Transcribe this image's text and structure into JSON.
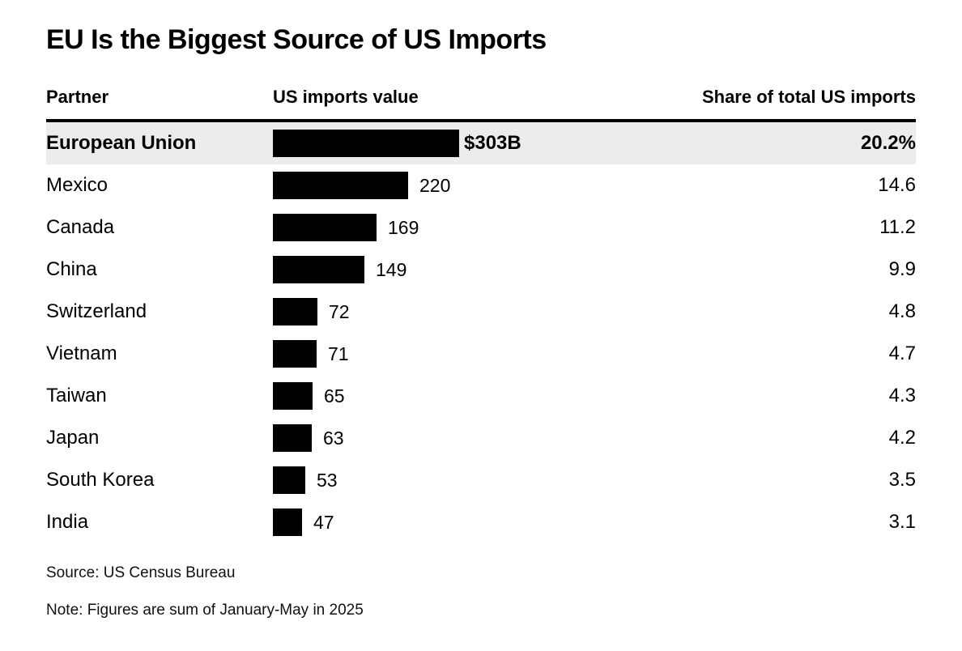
{
  "chart_data": {
    "type": "bar",
    "title": "EU Is the Biggest Source of US Imports",
    "columns": [
      "Partner",
      "US imports value",
      "Share of total US imports"
    ],
    "max_value": 303,
    "bar_color": "#000000",
    "highlight_row_background": "#ececec",
    "rows": [
      {
        "partner": "European Union",
        "value": 303,
        "value_label": "$303B",
        "share": 20.2,
        "share_label": "20.2%",
        "highlight": true
      },
      {
        "partner": "Mexico",
        "value": 220,
        "value_label": "220",
        "share": 14.6,
        "share_label": "14.6",
        "highlight": false
      },
      {
        "partner": "Canada",
        "value": 169,
        "value_label": "169",
        "share": 11.2,
        "share_label": "11.2",
        "highlight": false
      },
      {
        "partner": "China",
        "value": 149,
        "value_label": "149",
        "share": 9.9,
        "share_label": "9.9",
        "highlight": false
      },
      {
        "partner": "Switzerland",
        "value": 72,
        "value_label": "72",
        "share": 4.8,
        "share_label": "4.8",
        "highlight": false
      },
      {
        "partner": "Vietnam",
        "value": 71,
        "value_label": "71",
        "share": 4.7,
        "share_label": "4.7",
        "highlight": false
      },
      {
        "partner": "Taiwan",
        "value": 65,
        "value_label": "65",
        "share": 4.3,
        "share_label": "4.3",
        "highlight": false
      },
      {
        "partner": "Japan",
        "value": 63,
        "value_label": "63",
        "share": 4.2,
        "share_label": "4.2",
        "highlight": false
      },
      {
        "partner": "South Korea",
        "value": 53,
        "value_label": "53",
        "share": 3.5,
        "share_label": "3.5",
        "highlight": false
      },
      {
        "partner": "India",
        "value": 47,
        "value_label": "47",
        "share": 3.1,
        "share_label": "3.1",
        "highlight": false
      }
    ],
    "source": "Source: US Census Bureau",
    "note": "Note: Figures are sum of January-May in 2025",
    "legend": "off",
    "grid": "off"
  }
}
